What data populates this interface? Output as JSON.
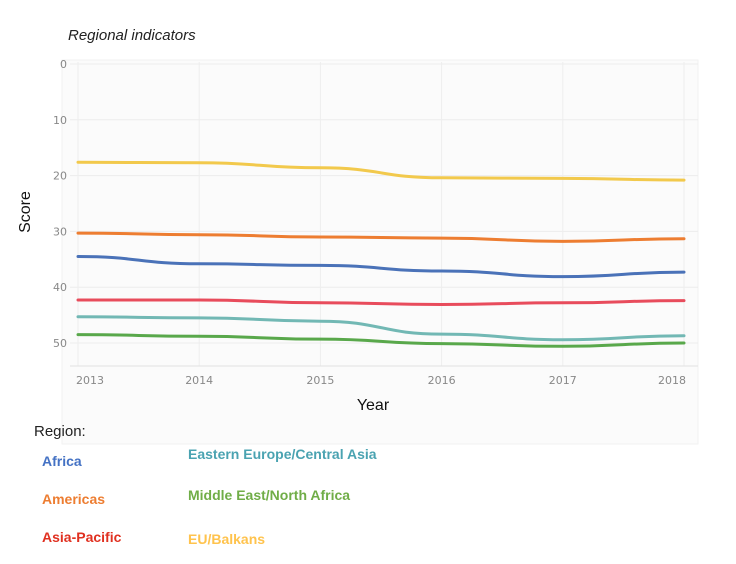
{
  "chart_data": {
    "type": "line",
    "title": "Regional indicators",
    "xlabel": "Year",
    "ylabel": "Score",
    "x": [
      2013,
      2014,
      2015,
      2016,
      2017,
      2018
    ],
    "ylim": [
      0,
      52
    ],
    "y_inverted": true,
    "y_ticks": [
      0,
      10,
      20,
      30,
      40,
      50
    ],
    "grid": true,
    "legend_title": "Region:",
    "legend_placement": "bottom",
    "series": [
      {
        "name": "Africa",
        "color": "#4a72b8",
        "values": [
          34.5,
          35.8,
          36.1,
          37.1,
          38.1,
          37.3
        ]
      },
      {
        "name": "Americas",
        "color": "#ed7d31",
        "values": [
          30.3,
          30.6,
          31.0,
          31.2,
          31.8,
          31.3
        ]
      },
      {
        "name": "Asia-Pacific",
        "color": "#e84c5c",
        "values": [
          42.3,
          42.3,
          42.8,
          43.1,
          42.8,
          42.4
        ]
      },
      {
        "name": "Eastern Europe/Central Asia",
        "color": "#72b8b4",
        "values": [
          45.3,
          45.5,
          46.1,
          48.4,
          49.4,
          48.7
        ]
      },
      {
        "name": "Middle East/North Africa",
        "color": "#59a84b",
        "values": [
          48.5,
          48.8,
          49.3,
          50.1,
          50.6,
          50.0
        ]
      },
      {
        "name": "EU/Balkans",
        "color": "#f2c94c",
        "values": [
          17.6,
          17.7,
          18.6,
          20.4,
          20.5,
          20.8
        ]
      }
    ],
    "legend_colors": {
      "Africa": "#4472c4",
      "Americas": "#ed7d31",
      "Asia-Pacific": "#e03020",
      "Eastern Europe/Central Asia": "#4aa3b1",
      "Middle East/North Africa": "#70ad47",
      "EU/Balkans": "#ffc34d"
    }
  }
}
